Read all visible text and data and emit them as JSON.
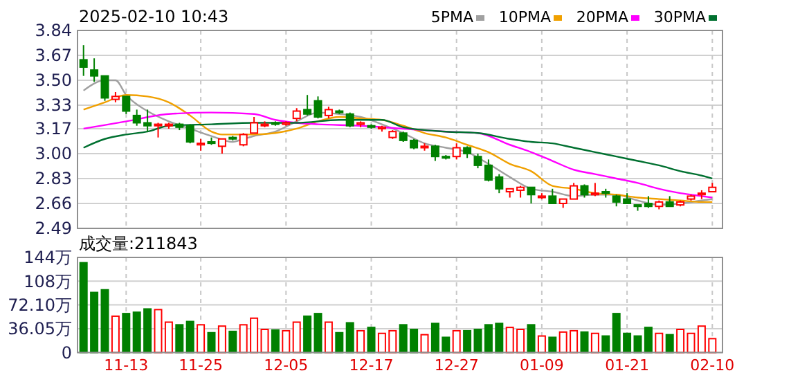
{
  "chart_data": [
    {
      "type": "candlestick",
      "title": "2025-02-10 10:43",
      "categories": [
        null,
        null,
        null,
        null,
        null,
        null,
        null,
        null,
        null,
        null,
        null,
        null,
        null,
        null,
        null,
        null,
        null,
        null,
        null,
        null,
        null,
        null,
        null,
        null,
        null,
        null,
        null,
        null,
        null,
        null,
        null,
        null,
        null,
        null,
        null,
        null,
        null,
        null,
        null,
        null,
        null,
        null,
        null,
        null,
        null,
        null,
        null,
        null,
        null,
        null,
        null,
        null,
        null,
        null,
        null,
        null,
        null,
        null,
        null,
        null
      ],
      "ohlc": [
        [
          3.64,
          3.74,
          3.53,
          3.59
        ],
        [
          3.57,
          3.65,
          3.49,
          3.53
        ],
        [
          3.53,
          3.53,
          3.36,
          3.38
        ],
        [
          3.37,
          3.42,
          3.35,
          3.39
        ],
        [
          3.39,
          3.39,
          3.27,
          3.29
        ],
        [
          3.26,
          3.3,
          3.19,
          3.21
        ],
        [
          3.21,
          3.3,
          3.15,
          3.19
        ],
        [
          3.19,
          3.21,
          3.11,
          3.2
        ],
        [
          3.19,
          3.21,
          3.17,
          3.2
        ],
        [
          3.2,
          3.21,
          3.16,
          3.18
        ],
        [
          3.19,
          3.2,
          3.07,
          3.08
        ],
        [
          3.06,
          3.1,
          3.02,
          3.07
        ],
        [
          3.08,
          3.11,
          3.06,
          3.07
        ],
        [
          3.05,
          3.1,
          3.0,
          3.1
        ],
        [
          3.11,
          3.12,
          3.09,
          3.1
        ],
        [
          3.06,
          3.14,
          3.05,
          3.13
        ],
        [
          3.14,
          3.25,
          3.14,
          3.21
        ],
        [
          3.19,
          3.22,
          3.18,
          3.2
        ],
        [
          3.21,
          3.22,
          3.19,
          3.2
        ],
        [
          3.2,
          3.22,
          3.19,
          3.21
        ],
        [
          3.24,
          3.31,
          3.22,
          3.29
        ],
        [
          3.3,
          3.4,
          3.26,
          3.27
        ],
        [
          3.36,
          3.39,
          3.24,
          3.25
        ],
        [
          3.26,
          3.32,
          3.24,
          3.3
        ],
        [
          3.29,
          3.3,
          3.27,
          3.28
        ],
        [
          3.27,
          3.28,
          3.18,
          3.19
        ],
        [
          3.2,
          3.22,
          3.18,
          3.21
        ],
        [
          3.19,
          3.2,
          3.17,
          3.18
        ],
        [
          3.17,
          3.19,
          3.15,
          3.18
        ],
        [
          3.11,
          3.16,
          3.1,
          3.15
        ],
        [
          3.14,
          3.15,
          3.08,
          3.09
        ],
        [
          3.09,
          3.1,
          3.03,
          3.04
        ],
        [
          3.04,
          3.07,
          3.02,
          3.05
        ],
        [
          3.05,
          3.06,
          2.95,
          2.98
        ],
        [
          2.98,
          2.99,
          2.96,
          2.97
        ],
        [
          2.98,
          3.07,
          2.96,
          3.04
        ],
        [
          3.04,
          3.05,
          2.97,
          3.0
        ],
        [
          2.98,
          3.0,
          2.9,
          2.92
        ],
        [
          2.92,
          2.96,
          2.81,
          2.82
        ],
        [
          2.84,
          2.86,
          2.73,
          2.76
        ],
        [
          2.74,
          2.76,
          2.7,
          2.76
        ],
        [
          2.75,
          2.78,
          2.7,
          2.77
        ],
        [
          2.77,
          2.77,
          2.66,
          2.72
        ],
        [
          2.7,
          2.73,
          2.69,
          2.71
        ],
        [
          2.71,
          2.76,
          2.66,
          2.66
        ],
        [
          2.66,
          2.69,
          2.63,
          2.69
        ],
        [
          2.69,
          2.8,
          2.69,
          2.78
        ],
        [
          2.78,
          2.79,
          2.7,
          2.72
        ],
        [
          2.72,
          2.8,
          2.71,
          2.73
        ],
        [
          2.74,
          2.76,
          2.7,
          2.73
        ],
        [
          2.71,
          2.72,
          2.64,
          2.67
        ],
        [
          2.69,
          2.73,
          2.66,
          2.66
        ],
        [
          2.65,
          2.65,
          2.61,
          2.64
        ],
        [
          2.66,
          2.71,
          2.63,
          2.64
        ],
        [
          2.64,
          2.68,
          2.62,
          2.67
        ],
        [
          2.67,
          2.71,
          2.64,
          2.64
        ],
        [
          2.65,
          2.68,
          2.64,
          2.67
        ],
        [
          2.69,
          2.72,
          2.68,
          2.71
        ],
        [
          2.72,
          2.75,
          2.69,
          2.73
        ],
        [
          2.74,
          2.8,
          2.74,
          2.77
        ]
      ],
      "series": [
        {
          "type": "line",
          "name": "5PMA",
          "color": "#a0a0a0",
          "values": [
            3.43,
            null,
            3.5,
            3.5,
            3.4,
            null,
            3.29,
            null,
            3.22,
            null,
            3.17,
            null,
            3.12,
            null,
            3.08,
            3.1,
            3.12,
            null,
            3.15,
            null,
            3.22,
            null,
            3.28,
            null,
            3.27,
            null,
            3.25,
            null,
            3.2,
            null,
            3.14,
            null,
            3.07,
            null,
            3.04,
            null,
            3.01,
            null,
            2.93,
            null,
            2.84,
            null,
            2.76,
            null,
            2.74,
            null,
            2.71,
            null,
            2.72,
            null,
            2.72,
            null,
            2.68,
            null,
            2.65,
            null,
            2.66,
            null,
            2.68,
            2.69
          ]
        },
        {
          "type": "line",
          "name": "10PMA",
          "color": "#f0a000",
          "values": [
            3.3,
            null,
            3.35,
            null,
            3.4,
            null,
            3.39,
            null,
            3.35,
            null,
            3.26,
            null,
            3.15,
            3.13,
            null,
            3.13,
            3.13,
            null,
            3.14,
            null,
            3.17,
            null,
            3.22,
            null,
            3.25,
            null,
            3.24,
            null,
            3.23,
            null,
            3.19,
            null,
            3.14,
            null,
            3.11,
            null,
            3.06,
            null,
            3.01,
            null,
            2.93,
            null,
            2.88,
            null,
            2.78,
            null,
            2.76,
            null,
            2.73,
            null,
            2.72,
            null,
            2.7,
            null,
            2.69,
            null,
            2.68,
            null,
            2.67,
            2.67
          ]
        },
        {
          "type": "line",
          "name": "20PMA",
          "color": "#ff00ff",
          "values": [
            3.17,
            null,
            null,
            null,
            3.22,
            null,
            null,
            null,
            3.27,
            null,
            null,
            null,
            3.28,
            null,
            null,
            null,
            3.27,
            null,
            3.23,
            null,
            3.21,
            null,
            3.2,
            null,
            null,
            null,
            3.19,
            null,
            null,
            null,
            3.17,
            null,
            null,
            null,
            3.15,
            null,
            null,
            3.14,
            null,
            null,
            3.06,
            null,
            3.01,
            null,
            2.95,
            null,
            2.89,
            null,
            2.86,
            null,
            2.83,
            null,
            2.8,
            null,
            2.76,
            null,
            2.73,
            null,
            2.71,
            2.7
          ]
        },
        {
          "type": "line",
          "name": "30PMA",
          "color": "#007030",
          "values": [
            3.04,
            null,
            3.1,
            null,
            3.13,
            null,
            3.15,
            null,
            3.19,
            null,
            null,
            null,
            3.2,
            null,
            null,
            null,
            3.21,
            null,
            null,
            null,
            3.21,
            null,
            null,
            null,
            3.23,
            null,
            null,
            null,
            3.23,
            null,
            3.18,
            null,
            null,
            null,
            3.15,
            null,
            null,
            3.14,
            null,
            null,
            3.1,
            null,
            3.08,
            null,
            3.07,
            null,
            3.04,
            null,
            3.01,
            null,
            2.98,
            null,
            2.95,
            null,
            2.92,
            null,
            2.88,
            null,
            2.85,
            2.83
          ]
        }
      ],
      "ylim": [
        2.49,
        3.84
      ],
      "yticks": [
        3.84,
        3.67,
        {
          "value": 3.5,
          "label": "3.50"
        },
        3.33,
        3.17,
        {
          "value": 3.0,
          "label": "3.00"
        },
        2.83,
        2.66,
        2.49
      ],
      "grid": true,
      "legend": "top right",
      "tick_labels": "y"
    },
    {
      "type": "bar",
      "title": "成交量:211843",
      "categories": [
        null,
        null,
        null,
        null,
        "11-13",
        null,
        null,
        null,
        null,
        null,
        null,
        "11-25",
        null,
        null,
        null,
        null,
        null,
        null,
        null,
        "12-05",
        null,
        null,
        null,
        null,
        null,
        null,
        null,
        "12-17",
        null,
        null,
        null,
        null,
        null,
        null,
        null,
        "12-27",
        null,
        null,
        null,
        null,
        null,
        null,
        null,
        "01-09",
        null,
        null,
        null,
        null,
        null,
        null,
        null,
        "01-21",
        null,
        null,
        null,
        null,
        null,
        null,
        null,
        "02-10"
      ],
      "values": [
        136,
        91,
        95,
        55,
        59,
        61,
        66,
        65,
        46,
        42,
        47,
        42,
        30,
        40,
        32,
        42,
        52,
        35,
        34,
        33,
        46,
        55,
        59,
        46,
        30,
        45,
        33,
        38,
        29,
        33,
        42,
        35,
        27,
        44,
        23,
        33,
        33,
        35,
        42,
        44,
        38,
        35,
        42,
        25,
        23,
        31,
        33,
        31,
        29,
        25,
        59,
        29,
        25,
        38,
        29,
        27,
        35,
        29,
        40,
        21
      ],
      "colors": [
        "#008000",
        "#008000",
        "#008000",
        "#ff0000",
        "#008000",
        "#008000",
        "#008000",
        "#ff0000",
        "#ff0000",
        "#008000",
        "#008000",
        "#ff0000",
        "#008000",
        "#ff0000",
        "#008000",
        "#ff0000",
        "#ff0000",
        "#ff0000",
        "#008000",
        "#ff0000",
        "#ff0000",
        "#008000",
        "#008000",
        "#ff0000",
        "#008000",
        "#008000",
        "#ff0000",
        "#008000",
        "#ff0000",
        "#ff0000",
        "#008000",
        "#008000",
        "#ff0000",
        "#008000",
        "#008000",
        "#ff0000",
        "#008000",
        "#008000",
        "#008000",
        "#008000",
        "#ff0000",
        "#ff0000",
        "#008000",
        "#ff0000",
        "#008000",
        "#ff0000",
        "#ff0000",
        "#008000",
        "#ff0000",
        "#008000",
        "#008000",
        "#008000",
        "#008000",
        "#008000",
        "#ff0000",
        "#008000",
        "#ff0000",
        "#ff0000",
        "#ff0000",
        "#ff0000"
      ],
      "ylim": [
        0,
        144
      ],
      "yticks": [
        0,
        {
          "value": 36.05,
          "label": "36.05万"
        },
        {
          "value": 72.1,
          "label": "72.10万"
        },
        {
          "value": 108,
          "label": "108万"
        },
        {
          "value": 144,
          "label": "144万"
        }
      ],
      "grid": true
    }
  ]
}
